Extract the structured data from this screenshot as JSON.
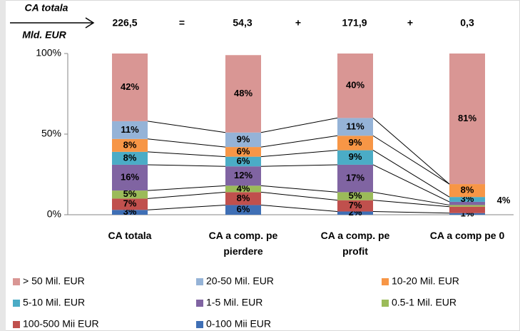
{
  "header": {
    "label": [
      "CA totala",
      "Mld. EUR"
    ],
    "equation": [
      "226,5",
      "=",
      "54,3",
      "+",
      "171,9",
      "+",
      "0,3"
    ]
  },
  "chart_data": {
    "type": "stacked_bar",
    "categories": [
      "CA totala",
      "CA a comp. pe pierdere",
      "CA a comp. pe profit",
      "CA a comp  pe 0"
    ],
    "ylim": [
      0,
      100
    ],
    "yticks": [
      {
        "value": 0,
        "label": "0%"
      },
      {
        "value": 50,
        "label": "50%"
      },
      {
        "value": 100,
        "label": "100%"
      }
    ],
    "series": [
      {
        "name": "0-100 Mii EUR",
        "color": "#3f6fb5",
        "values": [
          3,
          6,
          2,
          1
        ],
        "value_labels": [
          "3%",
          "6%",
          "2%",
          "1%"
        ]
      },
      {
        "name": "100-500 Mii EUR",
        "color": "#c0504d",
        "values": [
          7,
          8,
          7,
          4
        ],
        "value_labels": [
          "7%",
          "8%",
          "7%",
          "4%"
        ]
      },
      {
        "name": "0.5-1 Mil. EUR",
        "color": "#9bbb59",
        "values": [
          5,
          4,
          5,
          1
        ],
        "value_labels": [
          "5%",
          "4%",
          "5%",
          null
        ]
      },
      {
        "name": "1-5 Mil. EUR",
        "color": "#8064a2",
        "values": [
          16,
          12,
          17,
          2
        ],
        "value_labels": [
          "16%",
          "12%",
          "17%",
          null
        ]
      },
      {
        "name": "5-10 Mil. EUR",
        "color": "#4bacc6",
        "values": [
          8,
          6,
          9,
          3
        ],
        "value_labels": [
          "8%",
          "6%",
          "9%",
          "3%"
        ]
      },
      {
        "name": "10-20 Mil. EUR",
        "color": "#f79646",
        "values": [
          8,
          6,
          9,
          8
        ],
        "value_labels": [
          "8%",
          "6%",
          "9%",
          "8%"
        ]
      },
      {
        "name": "20-50 Mil. EUR",
        "color": "#95b3d7",
        "values": [
          11,
          9,
          11,
          0
        ],
        "value_labels": [
          "11%",
          "9%",
          "11%",
          null
        ]
      },
      {
        "name": "> 50 Mil. EUR",
        "color": "#d99694",
        "values": [
          42,
          48,
          40,
          81
        ],
        "value_labels": [
          "42%",
          "48%",
          "40%",
          "81%"
        ]
      }
    ]
  }
}
